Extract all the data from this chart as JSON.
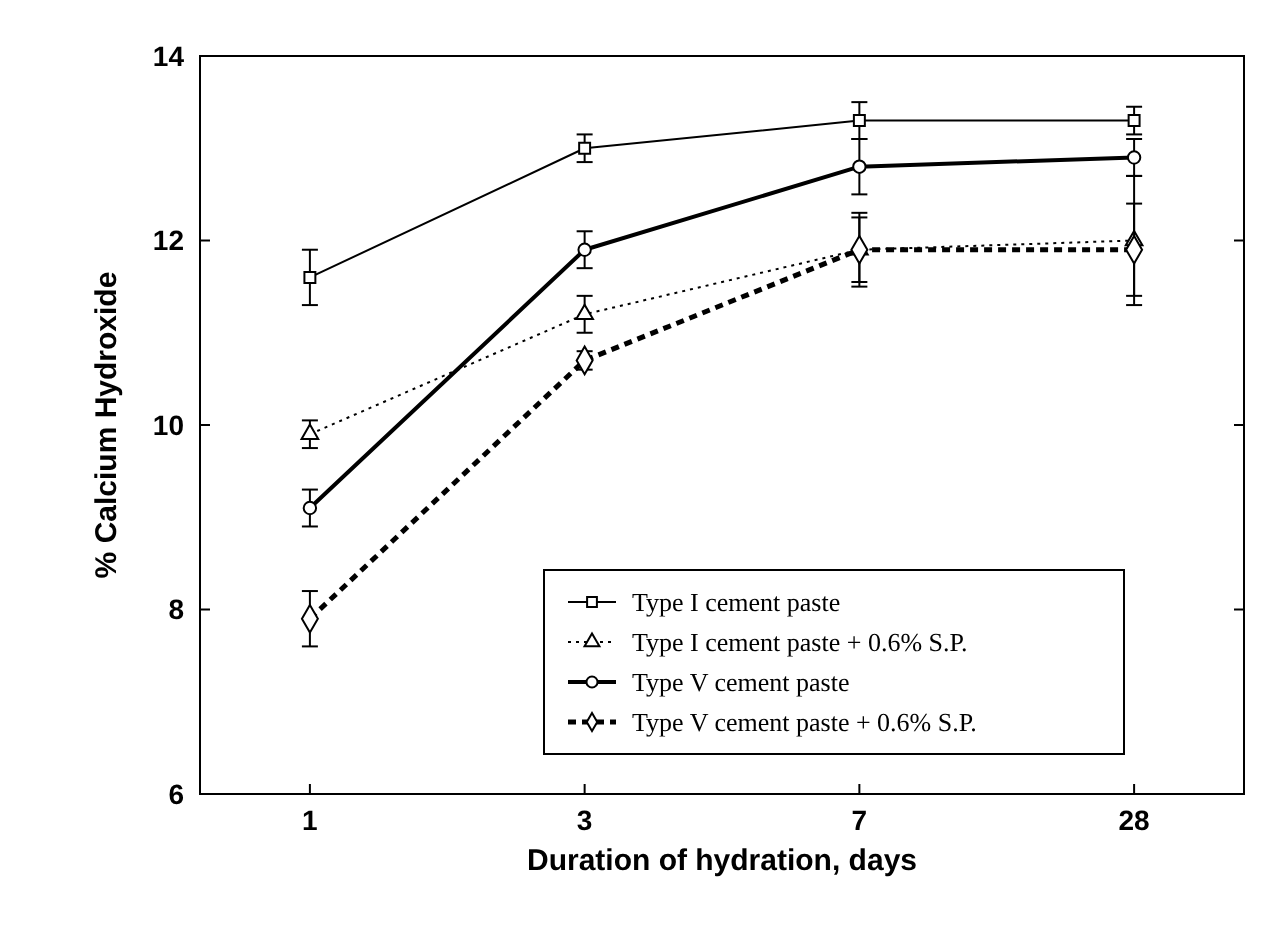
{
  "chart_data": {
    "type": "line",
    "xlabel": "Duration of hydration, days",
    "ylabel": "% Calcium Hydroxide",
    "categories": [
      "1",
      "3",
      "7",
      "28"
    ],
    "ylim": [
      6,
      14
    ],
    "yticks": [
      6,
      8,
      10,
      12,
      14
    ],
    "grid": false,
    "legend": "bottom right",
    "series": [
      {
        "name": "Type I cement paste",
        "color": "#000000",
        "marker": "square",
        "line_style": "solid",
        "values": [
          11.6,
          13.0,
          13.3,
          13.3
        ],
        "errors": [
          0.3,
          0.15,
          0.2,
          0.15
        ]
      },
      {
        "name": "Type I cement paste + 0.6% S.P.",
        "color": "#000000",
        "marker": "triangle",
        "line_style": "dotted",
        "values": [
          9.9,
          11.2,
          11.9,
          12.0
        ],
        "errors": [
          0.15,
          0.2,
          0.4,
          0.7
        ]
      },
      {
        "name": "Type V cement paste",
        "color": "#000000",
        "marker": "circle",
        "line_style": "solid",
        "values": [
          9.1,
          11.9,
          12.8,
          12.9
        ],
        "errors": [
          0.2,
          0.2,
          0.3,
          0.2
        ]
      },
      {
        "name": "Type V cement paste + 0.6% S.P.",
        "color": "#000000",
        "marker": "diamond",
        "line_style": "dashed",
        "values": [
          7.9,
          10.7,
          11.9,
          11.9
        ],
        "errors": [
          0.3,
          0.1,
          0.35,
          0.5
        ]
      }
    ]
  }
}
